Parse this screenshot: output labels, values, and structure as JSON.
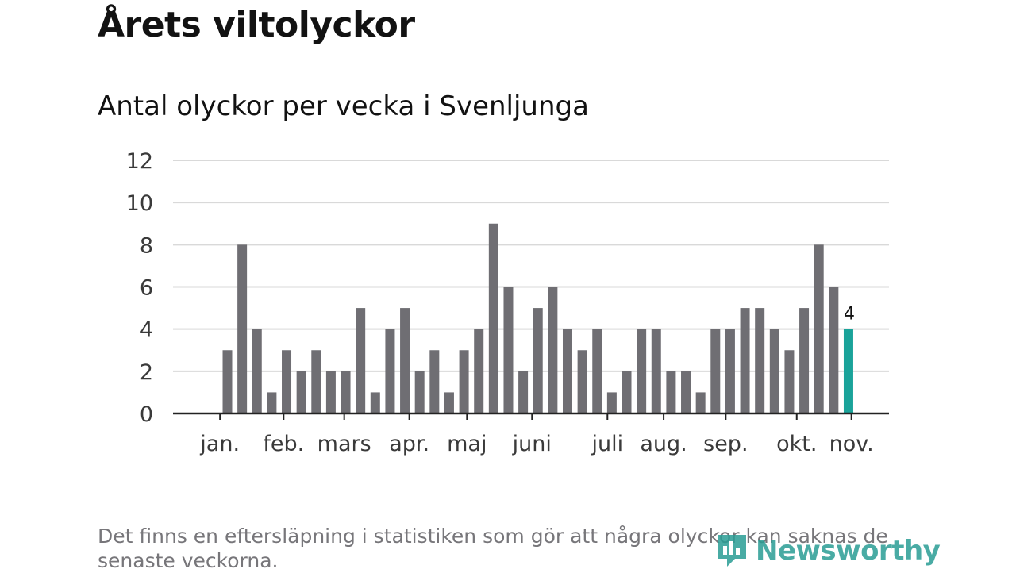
{
  "title": "Årets viltolyckor",
  "subtitle": "Antal olyckor per vecka i Svenljunga",
  "note": "Det finns en eftersläpning i statistiken som gör att några olyckor kan saknas de senaste veckorna.",
  "brand": {
    "name": "Newsworthy",
    "icon": "newsworthy-logo-icon",
    "color": "#2a9d95"
  },
  "colors": {
    "bar": "#6f6e73",
    "highlight": "#1aa39a",
    "grid": "#d9d9d9",
    "axis": "#222222"
  },
  "chart_data": {
    "type": "bar",
    "title": "Antal olyckor per vecka i Svenljunga",
    "xlabel": "",
    "ylabel": "",
    "ylim": [
      0,
      12
    ],
    "yticks": [
      0,
      2,
      4,
      6,
      8,
      10,
      12
    ],
    "grid": true,
    "values": [
      0,
      0,
      0,
      3,
      8,
      4,
      1,
      3,
      2,
      3,
      2,
      2,
      5,
      1,
      4,
      5,
      2,
      3,
      1,
      3,
      4,
      9,
      6,
      2,
      5,
      6,
      4,
      3,
      4,
      1,
      2,
      4,
      4,
      2,
      2,
      1,
      4,
      4,
      5,
      5,
      4,
      3,
      5,
      8,
      6,
      4
    ],
    "highlight_index": 45,
    "highlight_label": "4",
    "month_labels": [
      {
        "label": "jan.",
        "week_index": 2.5
      },
      {
        "label": "feb.",
        "week_index": 6.8
      },
      {
        "label": "mars",
        "week_index": 10.9
      },
      {
        "label": "apr.",
        "week_index": 15.3
      },
      {
        "label": "maj",
        "week_index": 19.2
      },
      {
        "label": "juni",
        "week_index": 23.6
      },
      {
        "label": "juli",
        "week_index": 28.7
      },
      {
        "label": "aug.",
        "week_index": 32.5
      },
      {
        "label": "sep.",
        "week_index": 36.7
      },
      {
        "label": "okt.",
        "week_index": 41.5
      },
      {
        "label": "nov.",
        "week_index": 45.2
      }
    ],
    "month_ticks": [
      2.5,
      6.8,
      10.9,
      15.3,
      19.2,
      23.6,
      28.7,
      32.5,
      36.7,
      41.5,
      45.2
    ]
  }
}
